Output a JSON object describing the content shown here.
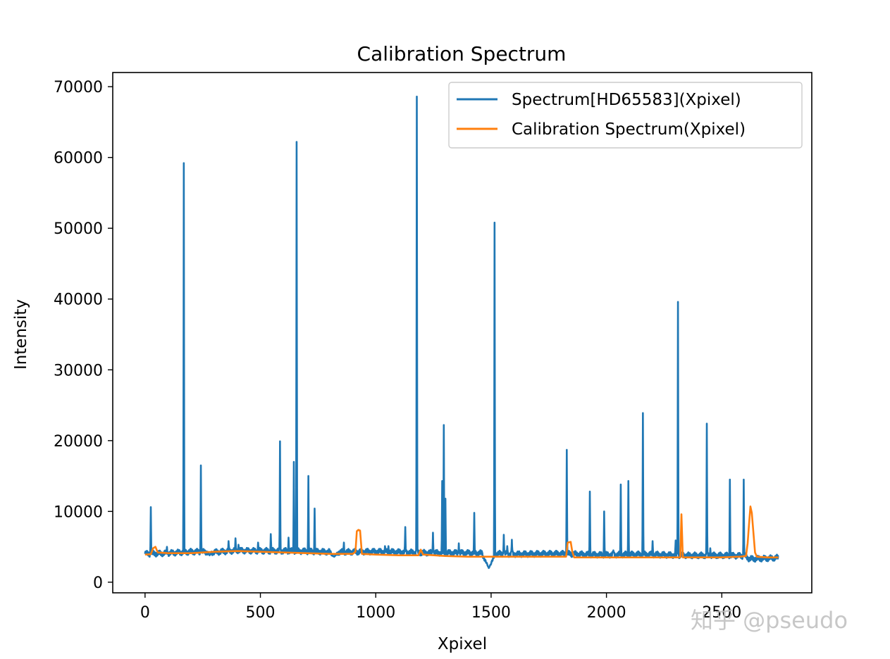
{
  "watermark": "知乎 @pseudo",
  "chart_data": {
    "type": "line",
    "title": "Calibration Spectrum",
    "xlabel": "Xpixel",
    "ylabel": "Intensity",
    "xlim": [
      -140,
      2890
    ],
    "ylim": [
      -1500,
      72000
    ],
    "xticks": [
      0,
      500,
      1000,
      1500,
      2000,
      2500
    ],
    "yticks": [
      0,
      10000,
      20000,
      30000,
      40000,
      50000,
      60000,
      70000
    ],
    "grid": false,
    "legend_position": "top-right",
    "series": [
      {
        "name": "Spectrum[HD65583](Xpixel)",
        "color": "#1f77b4",
        "baseline": [
          [
            0,
            4000
          ],
          [
            200,
            4300
          ],
          [
            300,
            4200
          ],
          [
            400,
            4500
          ],
          [
            600,
            4400
          ],
          [
            800,
            4300
          ],
          [
            1000,
            4300
          ],
          [
            1200,
            4200
          ],
          [
            1400,
            4100
          ],
          [
            1600,
            4000
          ],
          [
            1800,
            4000
          ],
          [
            2000,
            3900
          ],
          [
            2200,
            3900
          ],
          [
            2400,
            3800
          ],
          [
            2600,
            3700
          ],
          [
            2620,
            3300
          ],
          [
            2700,
            3400
          ],
          [
            2745,
            3500
          ]
        ],
        "dips": [
          [
            1490,
            2000,
            30
          ],
          [
            820,
            3600,
            20
          ],
          [
            280,
            3800,
            10
          ]
        ],
        "peaks": [
          [
            25,
            10600
          ],
          [
            95,
            5000
          ],
          [
            168,
            59200
          ],
          [
            242,
            16500
          ],
          [
            362,
            5800
          ],
          [
            392,
            6200
          ],
          [
            405,
            5300
          ],
          [
            490,
            5600
          ],
          [
            545,
            6800
          ],
          [
            585,
            19900
          ],
          [
            622,
            6300
          ],
          [
            645,
            17000
          ],
          [
            657,
            62200
          ],
          [
            708,
            15000
          ],
          [
            735,
            10400
          ],
          [
            862,
            5600
          ],
          [
            1040,
            5100
          ],
          [
            1055,
            5100
          ],
          [
            1128,
            7800
          ],
          [
            1178,
            68600
          ],
          [
            1248,
            7000
          ],
          [
            1288,
            14300
          ],
          [
            1295,
            22200
          ],
          [
            1302,
            11800
          ],
          [
            1360,
            5500
          ],
          [
            1427,
            9800
          ],
          [
            1515,
            50800
          ],
          [
            1555,
            6700
          ],
          [
            1570,
            5100
          ],
          [
            1590,
            6000
          ],
          [
            1828,
            18700
          ],
          [
            1928,
            12800
          ],
          [
            1990,
            10000
          ],
          [
            2030,
            4500
          ],
          [
            2062,
            13800
          ],
          [
            2095,
            14300
          ],
          [
            2158,
            23900
          ],
          [
            2200,
            5800
          ],
          [
            2300,
            5900
          ],
          [
            2310,
            39600
          ],
          [
            2435,
            22400
          ],
          [
            2450,
            4800
          ],
          [
            2535,
            14500
          ],
          [
            2595,
            14500
          ]
        ]
      },
      {
        "name": "Calibration Spectrum(Xpixel)",
        "color": "#ff7f0e",
        "points": [
          [
            0,
            3900
          ],
          [
            25,
            3950
          ],
          [
            35,
            4800
          ],
          [
            45,
            5000
          ],
          [
            55,
            4200
          ],
          [
            100,
            4100
          ],
          [
            200,
            4100
          ],
          [
            300,
            4300
          ],
          [
            400,
            4400
          ],
          [
            500,
            4300
          ],
          [
            600,
            4200
          ],
          [
            700,
            4100
          ],
          [
            800,
            4000
          ],
          [
            900,
            4000
          ],
          [
            912,
            4300
          ],
          [
            918,
            7200
          ],
          [
            925,
            7400
          ],
          [
            932,
            7300
          ],
          [
            940,
            4000
          ],
          [
            1000,
            3900
          ],
          [
            1100,
            3800
          ],
          [
            1185,
            3800
          ],
          [
            1195,
            4600
          ],
          [
            1205,
            3900
          ],
          [
            1300,
            3700
          ],
          [
            1400,
            3600
          ],
          [
            1500,
            3600
          ],
          [
            1600,
            3600
          ],
          [
            1700,
            3600
          ],
          [
            1825,
            3600
          ],
          [
            1832,
            5600
          ],
          [
            1845,
            5700
          ],
          [
            1852,
            4300
          ],
          [
            1860,
            3500
          ],
          [
            1900,
            3500
          ],
          [
            2000,
            3500
          ],
          [
            2100,
            3500
          ],
          [
            2200,
            3500
          ],
          [
            2320,
            3500
          ],
          [
            2325,
            9600
          ],
          [
            2331,
            3500
          ],
          [
            2400,
            3500
          ],
          [
            2500,
            3500
          ],
          [
            2580,
            3600
          ],
          [
            2605,
            3700
          ],
          [
            2612,
            5500
          ],
          [
            2618,
            8200
          ],
          [
            2624,
            10700
          ],
          [
            2630,
            9800
          ],
          [
            2637,
            7000
          ],
          [
            2644,
            4200
          ],
          [
            2652,
            3600
          ],
          [
            2700,
            3500
          ],
          [
            2745,
            3500
          ]
        ]
      }
    ]
  }
}
